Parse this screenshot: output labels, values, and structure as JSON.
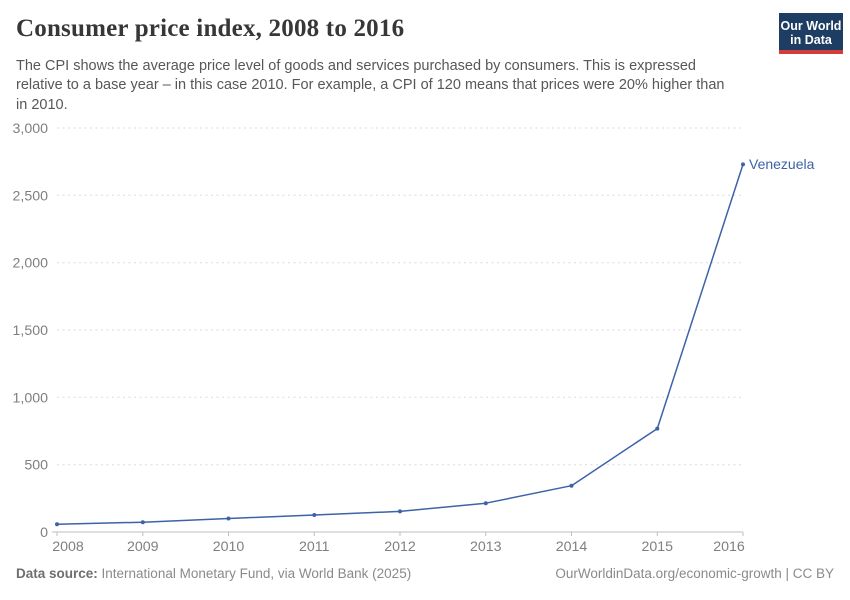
{
  "header": {
    "title": "Consumer price index, 2008 to 2016",
    "subtitle_lines": [
      "The CPI shows the average price level of goods and services purchased by consumers. This is expressed",
      "relative to a base year – in this case 2010. For example, a CPI of 120 means that prices were 20% higher than",
      "in 2010."
    ],
    "logo": {
      "line1": "Our World",
      "line2": "in Data",
      "bg": "#1d3d63",
      "stripe": "#d13d3d"
    }
  },
  "chart_data": {
    "type": "line",
    "title": "Consumer price index, 2008 to 2016",
    "x": [
      2008,
      2009,
      2010,
      2011,
      2012,
      2013,
      2014,
      2015,
      2016
    ],
    "xtick_labels": [
      "2008",
      "2009",
      "2010",
      "2011",
      "2012",
      "2013",
      "2014",
      "2015",
      "2016"
    ],
    "series": [
      {
        "name": "Venezuela",
        "color": "#3d62a8",
        "values": [
          57,
          73,
          100,
          126,
          153,
          214,
          344,
          768,
          2730
        ]
      }
    ],
    "xlabel": "",
    "ylabel": "",
    "ylim": [
      0,
      3000
    ],
    "yticks": [
      0,
      500,
      1000,
      1500,
      2000,
      2500,
      3000
    ],
    "ytick_labels": [
      "0",
      "500",
      "1,000",
      "1,500",
      "2,000",
      "2,500",
      "3,000"
    ],
    "grid": "horizontal-dashed",
    "legend_position": "end-of-line-label",
    "grid_color": "#dadada",
    "axis_color": "#bfbfbf",
    "tick_label_color": "#7f7f7f"
  },
  "footer": {
    "datasource_label": "Data source:",
    "datasource_text": " International Monetary Fund, via World Bank (2025)",
    "credit": "OurWorldinData.org/economic-growth | CC BY"
  }
}
